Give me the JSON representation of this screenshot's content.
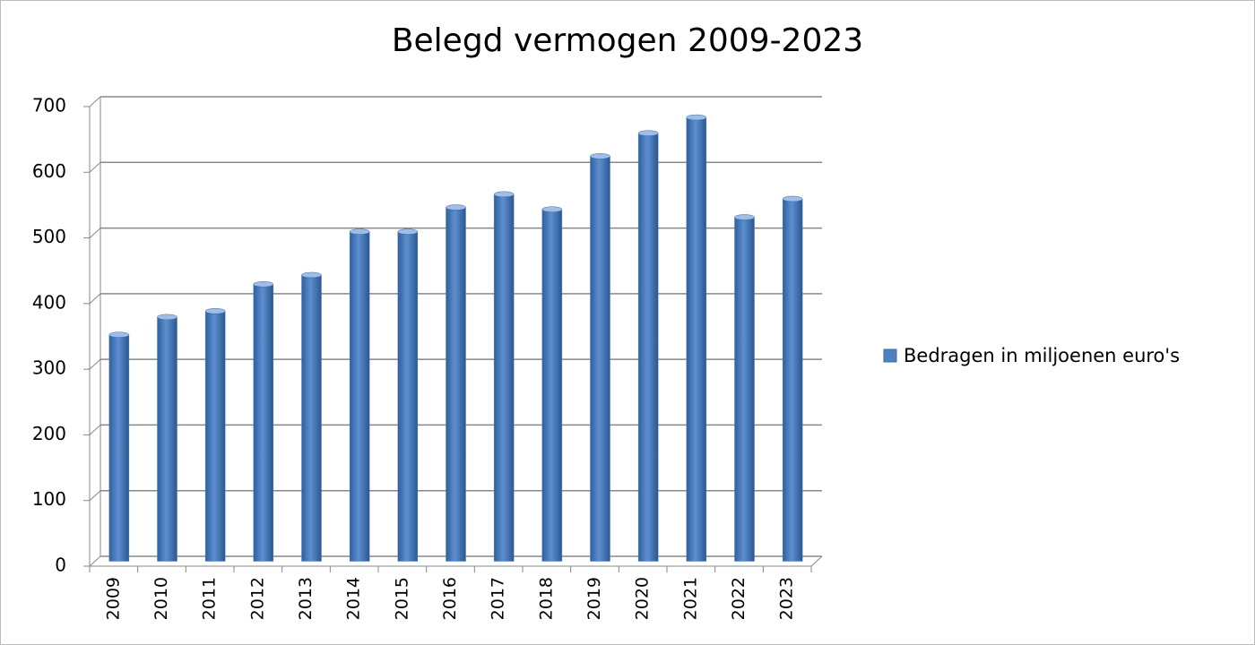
{
  "chart_data": {
    "type": "bar",
    "title": "Belegd vermogen 2009-2023",
    "categories": [
      "2009",
      "2010",
      "2011",
      "2012",
      "2013",
      "2014",
      "2015",
      "2016",
      "2017",
      "2018",
      "2019",
      "2020",
      "2021",
      "2022",
      "2023"
    ],
    "series": [
      {
        "name": "Bedragen in miljoenen euro's",
        "color": "#4f81bd",
        "values": [
          345,
          372,
          381,
          422,
          436,
          502,
          502,
          539,
          559,
          536,
          617,
          652,
          676,
          524,
          552
        ]
      }
    ],
    "ylim": [
      0,
      700
    ],
    "yticks": [
      0,
      100,
      200,
      300,
      400,
      500,
      600,
      700
    ],
    "grid": true
  }
}
